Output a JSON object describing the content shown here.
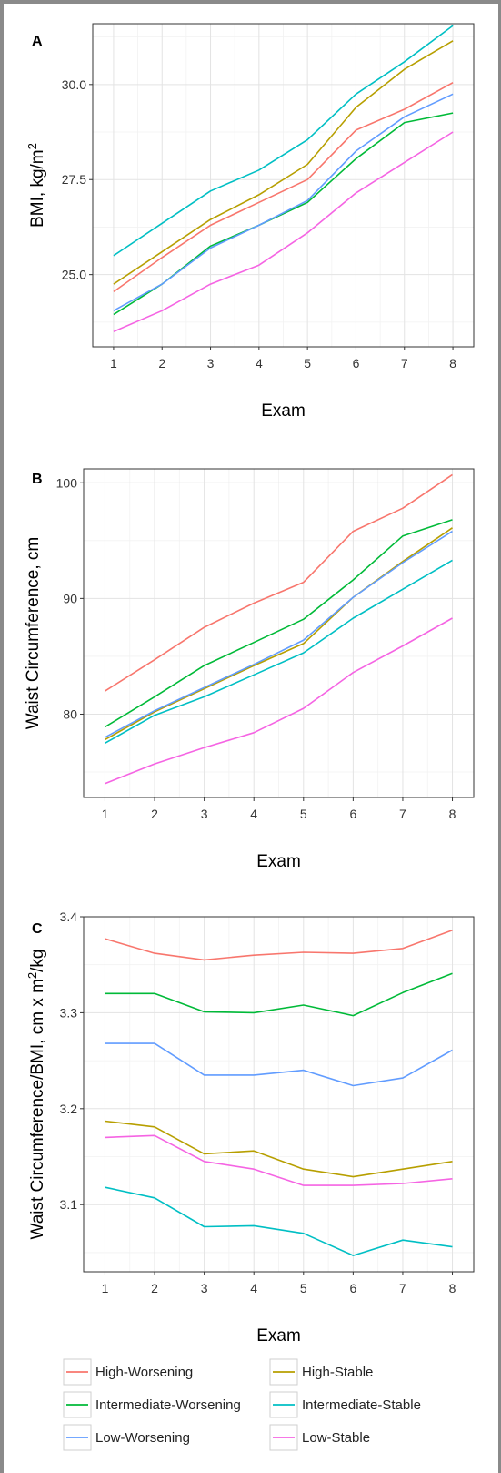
{
  "figure": {
    "legend": {
      "entries": [
        {
          "label": "High-Worsening",
          "color": "#F8766D"
        },
        {
          "label": "High-Stable",
          "color": "#B79F00"
        },
        {
          "label": "Intermediate-Worsening",
          "color": "#00BA38"
        },
        {
          "label": "Intermediate-Stable",
          "color": "#00BFC4"
        },
        {
          "label": "Low-Worsening",
          "color": "#619CFF"
        },
        {
          "label": "Low-Stable",
          "color": "#F564E3"
        }
      ]
    }
  },
  "chart_data": [
    {
      "type": "line",
      "panel": "A",
      "xlabel": "Exam",
      "ylabel": "BMI, kg/m²",
      "ylim": [
        23.1,
        31.6
      ],
      "yticks": [
        25.0,
        27.5,
        30.0
      ],
      "x": [
        1,
        2,
        3,
        4,
        5,
        6,
        7,
        8
      ],
      "grid": true,
      "series": [
        {
          "name": "High-Worsening",
          "color": "#F8766D",
          "values": [
            24.55,
            25.45,
            26.3,
            26.9,
            27.5,
            28.8,
            29.35,
            30.05
          ]
        },
        {
          "name": "High-Stable",
          "color": "#B79F00",
          "values": [
            24.75,
            25.6,
            26.45,
            27.1,
            27.9,
            29.4,
            30.4,
            31.15
          ]
        },
        {
          "name": "Intermediate-Worsening",
          "color": "#00BA38",
          "values": [
            23.95,
            24.75,
            25.75,
            26.3,
            26.9,
            28.05,
            29.0,
            29.25
          ]
        },
        {
          "name": "Intermediate-Stable",
          "color": "#00BFC4",
          "values": [
            25.5,
            26.35,
            27.2,
            27.75,
            28.55,
            29.75,
            30.6,
            31.55
          ]
        },
        {
          "name": "Low-Worsening",
          "color": "#619CFF",
          "values": [
            24.05,
            24.75,
            25.7,
            26.3,
            26.95,
            28.25,
            29.15,
            29.75
          ]
        },
        {
          "name": "Low-Stable",
          "color": "#F564E3",
          "values": [
            23.5,
            24.05,
            24.75,
            25.25,
            26.1,
            27.15,
            27.95,
            28.75
          ]
        }
      ]
    },
    {
      "type": "line",
      "panel": "B",
      "xlabel": "Exam",
      "ylabel": "Waist Circumference, cm",
      "ylim": [
        72.8,
        101.2
      ],
      "yticks": [
        80,
        90,
        100
      ],
      "x": [
        1,
        2,
        3,
        4,
        5,
        6,
        7,
        8
      ],
      "grid": true,
      "series": [
        {
          "name": "High-Worsening",
          "color": "#F8766D",
          "values": [
            82.0,
            84.7,
            87.5,
            89.6,
            91.4,
            95.8,
            97.8,
            100.7
          ]
        },
        {
          "name": "High-Stable",
          "color": "#B79F00",
          "values": [
            77.8,
            80.2,
            82.2,
            84.2,
            86.1,
            90.1,
            93.2,
            96.1
          ]
        },
        {
          "name": "Intermediate-Worsening",
          "color": "#00BA38",
          "values": [
            78.9,
            81.5,
            84.2,
            86.2,
            88.2,
            91.6,
            95.4,
            96.8
          ]
        },
        {
          "name": "Intermediate-Stable",
          "color": "#00BFC4",
          "values": [
            77.5,
            79.9,
            81.5,
            83.4,
            85.3,
            88.3,
            90.8,
            93.3
          ]
        },
        {
          "name": "Low-Worsening",
          "color": "#619CFF",
          "values": [
            78.0,
            80.3,
            82.3,
            84.3,
            86.4,
            90.1,
            93.1,
            95.8
          ]
        },
        {
          "name": "Low-Stable",
          "color": "#F564E3",
          "values": [
            74.0,
            75.7,
            77.1,
            78.4,
            80.5,
            83.6,
            85.9,
            88.3
          ]
        }
      ]
    },
    {
      "type": "line",
      "panel": "C",
      "xlabel": "Exam",
      "ylabel": "Waist Circumference/BMI, cm x m²/kg",
      "ylim": [
        3.03,
        3.4
      ],
      "yticks": [
        3.1,
        3.2,
        3.3,
        3.4
      ],
      "x": [
        1,
        2,
        3,
        4,
        5,
        6,
        7,
        8
      ],
      "grid": true,
      "series": [
        {
          "name": "High-Worsening",
          "color": "#F8766D",
          "values": [
            3.377,
            3.362,
            3.355,
            3.36,
            3.363,
            3.362,
            3.367,
            3.386
          ]
        },
        {
          "name": "High-Stable",
          "color": "#B79F00",
          "values": [
            3.187,
            3.181,
            3.153,
            3.156,
            3.137,
            3.129,
            3.137,
            3.145
          ]
        },
        {
          "name": "Intermediate-Worsening",
          "color": "#00BA38",
          "values": [
            3.32,
            3.32,
            3.301,
            3.3,
            3.308,
            3.297,
            3.321,
            3.341
          ]
        },
        {
          "name": "Intermediate-Stable",
          "color": "#00BFC4",
          "values": [
            3.118,
            3.107,
            3.077,
            3.078,
            3.07,
            3.047,
            3.063,
            3.056
          ]
        },
        {
          "name": "Low-Worsening",
          "color": "#619CFF",
          "values": [
            3.268,
            3.268,
            3.235,
            3.235,
            3.24,
            3.224,
            3.232,
            3.261
          ]
        },
        {
          "name": "Low-Stable",
          "color": "#F564E3",
          "values": [
            3.17,
            3.172,
            3.145,
            3.137,
            3.12,
            3.12,
            3.122,
            3.127
          ]
        }
      ]
    }
  ]
}
